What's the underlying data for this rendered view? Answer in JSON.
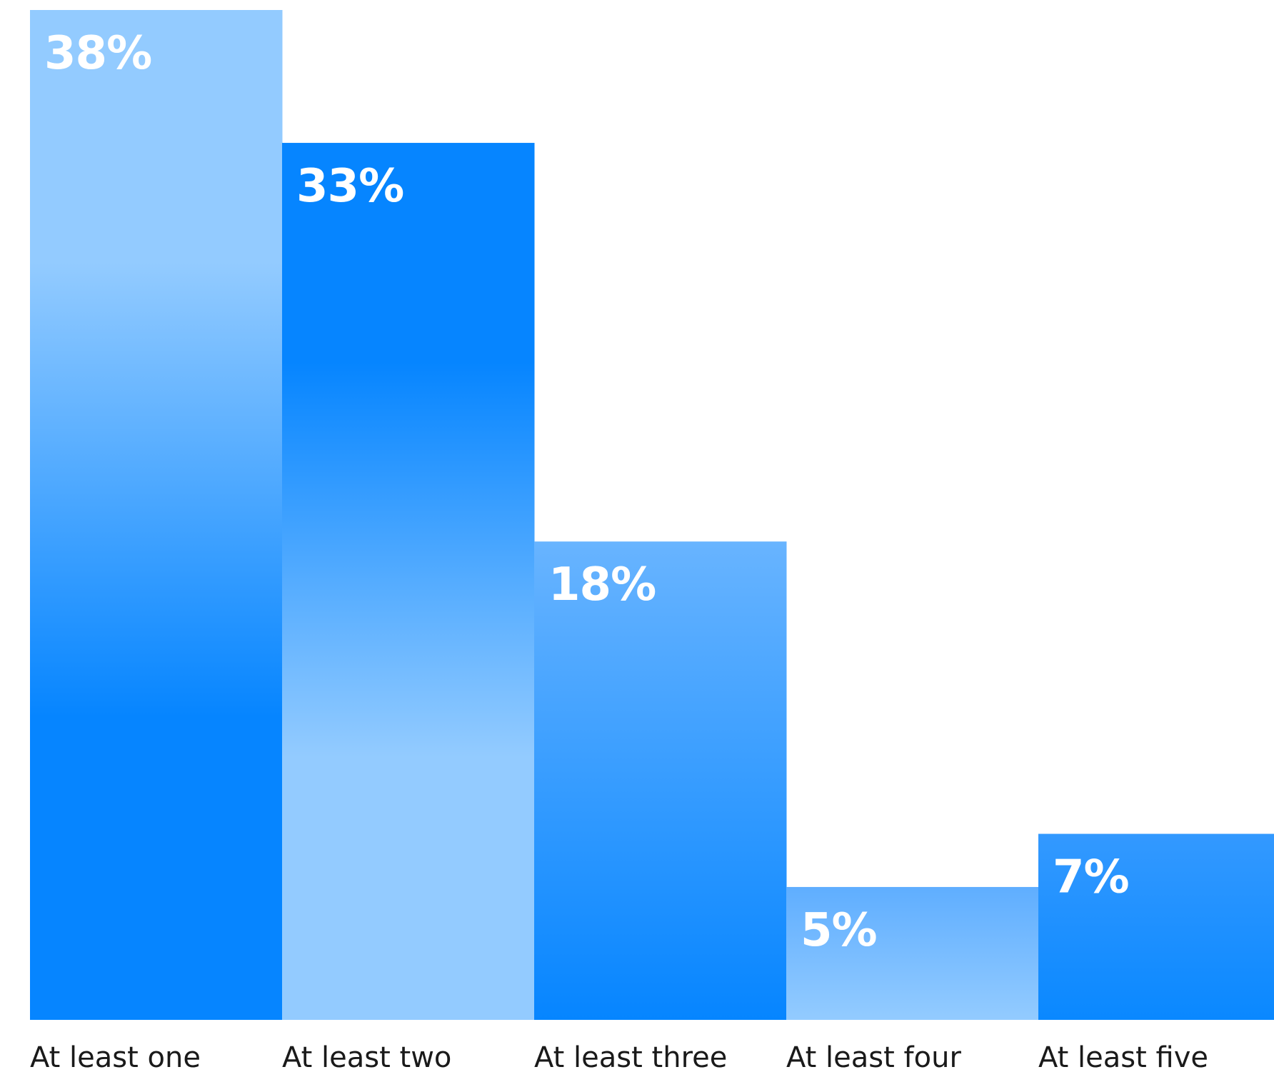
{
  "chart_data": {
    "type": "bar",
    "categories": [
      "At least one",
      "At least two",
      "At least three",
      "At least four",
      "At least five"
    ],
    "values": [
      38,
      33,
      18,
      5,
      7
    ],
    "value_labels": [
      "38%",
      "33%",
      "18%",
      "5%",
      "7%"
    ],
    "ylim": [
      0,
      38
    ],
    "grid": false,
    "legend": "none",
    "colors": {
      "bright_blue": "#0685FF",
      "light_blue": "#93CBFF",
      "mid_blue": "#4FA9FF"
    },
    "bar_gradients": [
      [
        "#93CBFF",
        "#93CBFF",
        "#0685FF",
        "#0685FF"
      ],
      [
        "#0685FF",
        "#0685FF",
        "#93CBFF",
        "#93CBFF"
      ],
      [
        "#68B4FF",
        "#0685FF"
      ],
      [
        "#5FAEFF",
        "#93CBFF"
      ],
      [
        "#3399FF",
        "#0A88FF"
      ]
    ]
  }
}
